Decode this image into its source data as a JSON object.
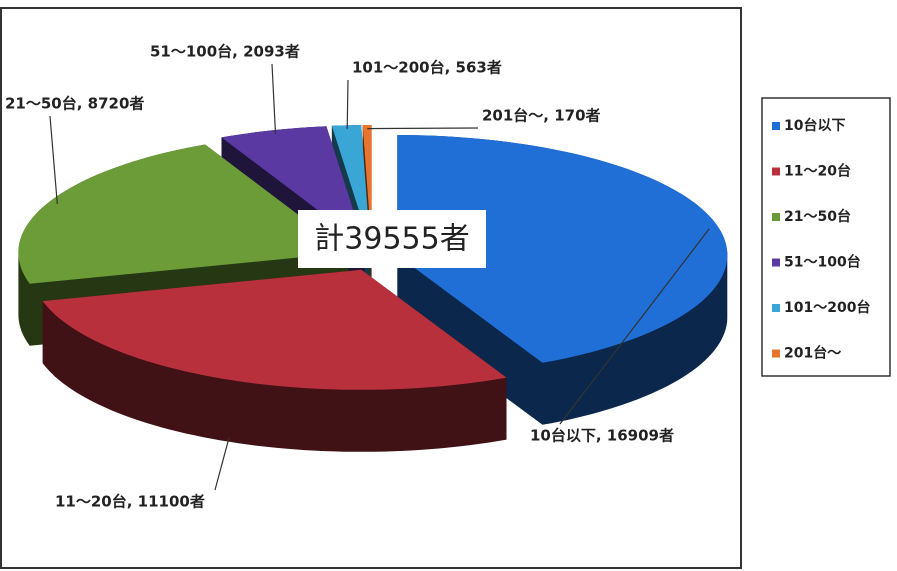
{
  "chart_data": {
    "type": "pie",
    "categories": [
      "10台以下",
      "11～20台",
      "21～50台",
      "51～100台",
      "101～200台",
      "201台～"
    ],
    "values": [
      16909,
      11100,
      8720,
      2093,
      563,
      170
    ],
    "value_labels": [
      "10台以下, 16909者",
      "11～20台, 11100者",
      "21～50台, 8720者",
      "51～100台, 2093者",
      "101～200台, 563者",
      "201台～, 170者"
    ],
    "colors": [
      "#1f6fd6",
      "#b8303c",
      "#6c9c38",
      "#5a3aa2",
      "#3aa6d6",
      "#e8742e"
    ],
    "annotation": "計39555者",
    "legend": "right"
  }
}
